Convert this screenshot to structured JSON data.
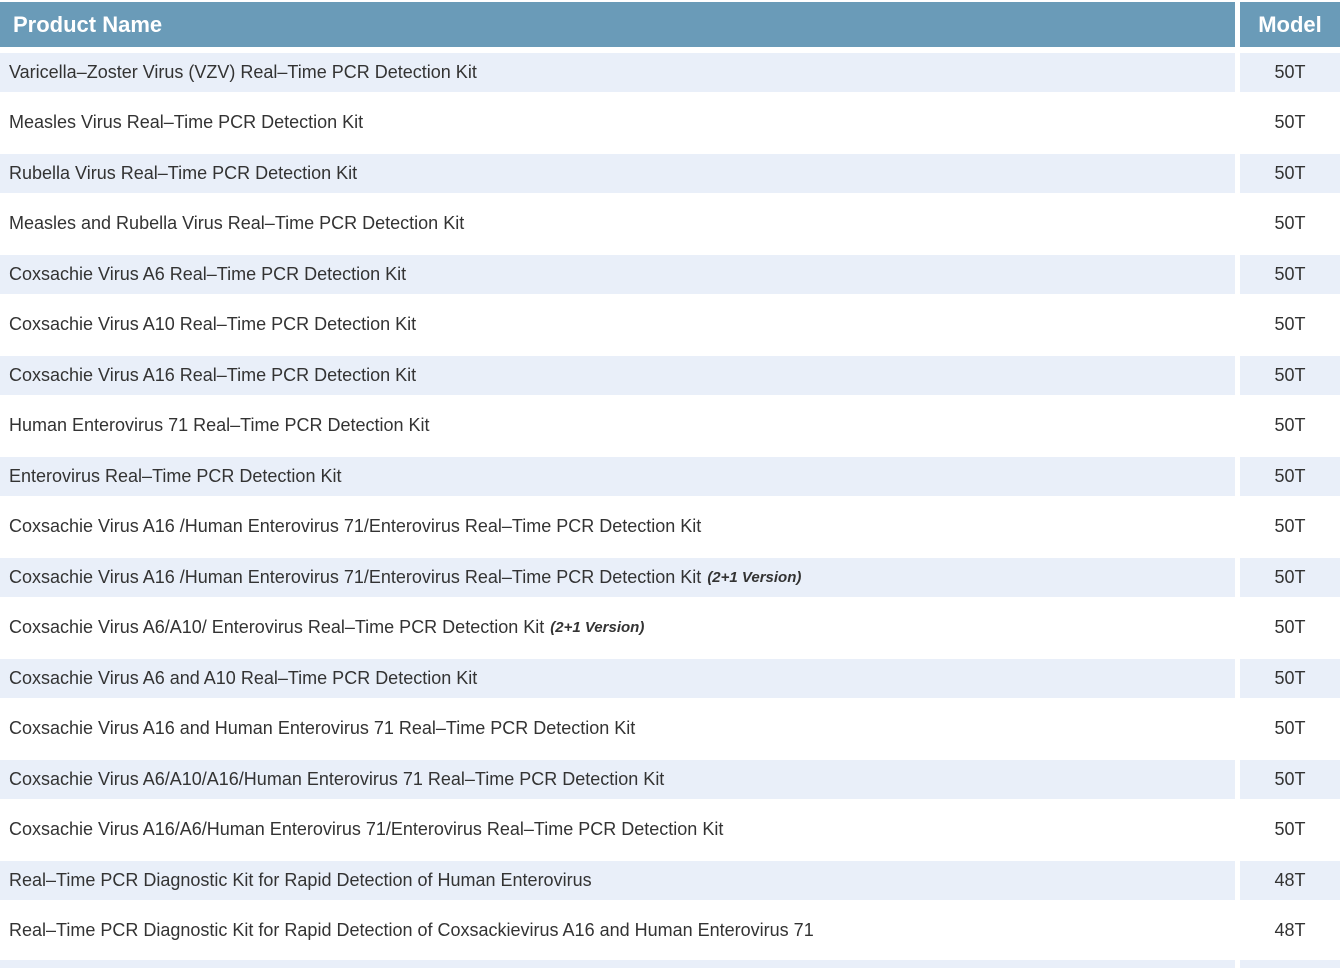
{
  "table": {
    "columns": [
      "Product Name",
      "Model"
    ],
    "rows": [
      {
        "name": "Varicella–Zoster Virus (VZV) Real–Time PCR Detection Kit",
        "note": "",
        "model": "50T"
      },
      {
        "name": "Measles Virus Real–Time PCR Detection Kit",
        "note": "",
        "model": "50T"
      },
      {
        "name": "Rubella Virus Real–Time PCR Detection Kit",
        "note": "",
        "model": "50T"
      },
      {
        "name": "Measles and Rubella Virus Real–Time PCR Detection Kit",
        "note": "",
        "model": "50T"
      },
      {
        "name": "Coxsachie Virus A6 Real–Time PCR Detection Kit",
        "note": "",
        "model": "50T"
      },
      {
        "name": "Coxsachie Virus A10 Real–Time PCR Detection Kit",
        "note": "",
        "model": "50T"
      },
      {
        "name": "Coxsachie Virus A16 Real–Time PCR Detection Kit",
        "note": "",
        "model": "50T"
      },
      {
        "name": "Human Enterovirus 71 Real–Time PCR Detection Kit",
        "note": "",
        "model": "50T"
      },
      {
        "name": "Enterovirus Real–Time PCR Detection Kit",
        "note": "",
        "model": "50T"
      },
      {
        "name": "Coxsachie Virus A16 /Human Enterovirus 71/Enterovirus Real–Time PCR Detection Kit",
        "note": "",
        "model": "50T"
      },
      {
        "name": "Coxsachie Virus A16 /Human Enterovirus 71/Enterovirus Real–Time PCR Detection Kit",
        "note": "(2+1 Version)",
        "model": "50T"
      },
      {
        "name": "Coxsachie Virus A6/A10/ Enterovirus Real–Time PCR Detection Kit",
        "note": "(2+1 Version)",
        "model": "50T"
      },
      {
        "name": "Coxsachie Virus A6 and A10 Real–Time PCR Detection Kit",
        "note": "",
        "model": "50T"
      },
      {
        "name": "Coxsachie Virus A16 and Human Enterovirus 71 Real–Time PCR Detection Kit",
        "note": "",
        "model": "50T"
      },
      {
        "name": "Coxsachie Virus A6/A10/A16/Human Enterovirus 71 Real–Time PCR Detection Kit",
        "note": "",
        "model": "50T"
      },
      {
        "name": "Coxsachie Virus A16/A6/Human Enterovirus 71/Enterovirus Real–Time PCR Detection Kit",
        "note": "",
        "model": "50T"
      },
      {
        "name": "Real–Time PCR Diagnostic Kit for Rapid Detection of Human Enterovirus",
        "note": "",
        "model": "48T"
      },
      {
        "name": "Real–Time PCR Diagnostic Kit for Rapid Detection of Coxsackievirus A16 and Human Enterovirus 71",
        "note": "",
        "model": "48T"
      }
    ]
  },
  "colors": {
    "header_bg": "#6A9BB8",
    "header_text": "#FFFFFF",
    "row_shaded_bg": "#E9EFF9",
    "body_text": "#333333"
  }
}
